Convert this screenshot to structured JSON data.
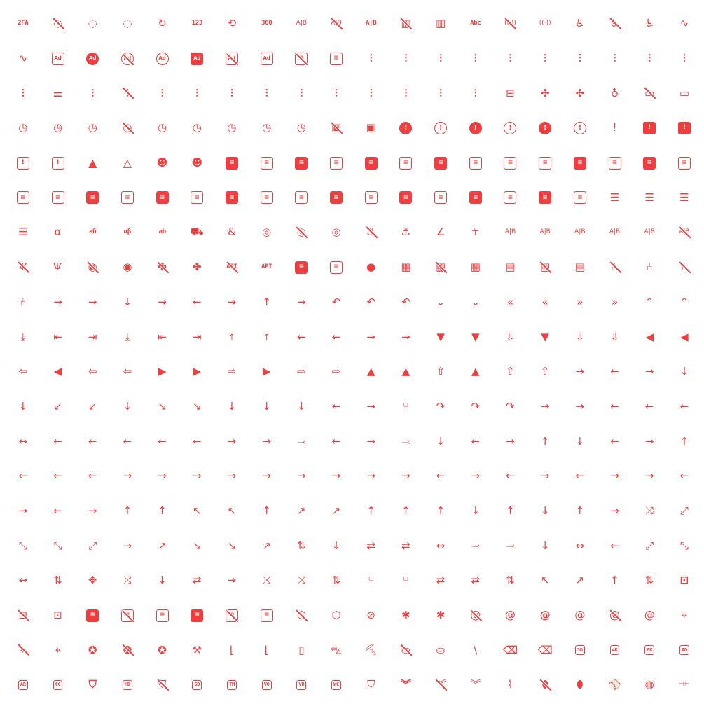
{
  "accent_color": "#f03e3e",
  "icons": [
    {
      "name": "2fa",
      "label": "2FA"
    },
    "3d-cube-sphere-off",
    "3d-cube-sphere",
    "3d-rotate",
    "24-hours",
    {
      "name": "123",
      "label": "123"
    },
    "360-view",
    {
      "name": "360",
      "label": "360"
    },
    "a-b-2",
    "a-b-off",
    {
      "name": "a-b",
      "label": "A|B"
    },
    "abacus-off",
    "abacus",
    {
      "name": "abc",
      "label": "Abc"
    },
    "access-point-off",
    "access-point",
    "accessible-filled",
    "accessible-off",
    "accessible",
    "activity-heartbeat",
    "activity",
    "ad-2",
    "ad-circle-filled",
    "ad-circle-off",
    "ad-circle",
    "ad-filled",
    "ad-off",
    "ad",
    "address-book-off",
    "address-book",
    "adjustments-alt",
    "adjustments-bolt",
    "adjustments-cancel",
    "adjustments-check",
    "adjustments-code",
    "adjustments-cog",
    "adjustments-dollar",
    "adjustments-down",
    "adjustments-exclamation",
    "adjustments-filled",
    "adjustments-heart",
    "adjustments-horizontal",
    "adjustments-minus",
    "adjustments-off",
    "adjustments-pause",
    "adjustments-pin",
    "adjustments-plus",
    "adjustments-question",
    "adjustments-search",
    "adjustments-share",
    "adjustments-star",
    "adjustments-up",
    "adjustments-x",
    "adjustments",
    "aerial-lift",
    "affiliate-filled",
    "affiliate",
    "air-balloon",
    "air-conditioning-disabled",
    "air-conditioning",
    "alarm-filled",
    "alarm-minus-filled",
    "alarm-minus",
    "alarm-off",
    "alarm-plus-filled",
    "alarm-plus",
    "alarm-snooze-filled",
    "alarm-snooze",
    "alarm",
    "album-off",
    "album",
    "alert-circle-filled",
    "alert-circle",
    "alert-hexagon-filled",
    "alert-hexagon",
    "alert-octagon-filled",
    "alert-octagon",
    "alert-small",
    "alert-square-filled",
    "alert-square-rounded-filled",
    "alert-square-rounded",
    "alert-square",
    "alert-triangle-filled",
    "alert-triangle",
    "alien-filled",
    "alien",
    "align-box-bottom-center-filled",
    "align-box-bottom-center",
    "align-box-bottom-left-filled",
    "align-box-bottom-left",
    "align-box-bottom-right-filled",
    "align-box-bottom-right",
    "align-box-center-middle-filled",
    "align-box-center-middle",
    "align-box-center-stretch",
    "align-box-center-top",
    "align-box-left-bottom-filled",
    "align-box-left-bottom",
    "align-box-left-middle-filled",
    "align-box-left-middle",
    "align-box-left-stretch",
    "align-box-left-top",
    "align-box-left-top-filled",
    "align-box-left-top-outline",
    "align-box-right-bottom-filled",
    "align-box-right-bottom",
    "align-box-right-middle-filled",
    "align-box-right-middle",
    "align-box-right-stretch",
    "align-box-right-top-filled",
    "align-box-right-top",
    "align-box-top-center-filled",
    "align-box-top-center",
    "align-box-top-left-filled",
    "align-box-top-left",
    "align-box-top-right-filled",
    "align-box-top-right",
    "align-center",
    "align-justified",
    "align-left",
    "align-right",
    "alpha",
    {
      "name": "alphabet-cyrillic",
      "label": "аб"
    },
    {
      "name": "alphabet-greek",
      "label": "αβ"
    },
    {
      "name": "alphabet-latin",
      "label": "ab"
    },
    "ambulance",
    "ampersand",
    "analyze-filled",
    "analyze-off",
    "analyze",
    "anchor-off",
    "anchor",
    "angle",
    "ankh",
    "antenna-bars-1",
    "antenna-bars-2",
    "antenna-bars-3",
    "antenna-bars-4",
    "antenna-bars-5",
    "antenna-bars-off",
    "antenna-off",
    "antenna",
    "aperture-off",
    "aperture",
    "api-app-off",
    "api-app",
    {
      "name": "api-off",
      "label": "API"
    },
    {
      "name": "api",
      "label": "API"
    },
    "app-window-filled",
    "app-window",
    "apple",
    "apps-filled",
    "apps-off",
    "apps",
    "archive-filled",
    "archive-off",
    "archive",
    "armchair-2-off",
    "armchair-2",
    "armchair-off",
    "armchair",
    "arrow-autofit-content-filled",
    "arrow-autofit-content",
    "arrow-autofit-down",
    "arrow-autofit-height",
    "arrow-autofit-left",
    "arrow-autofit-right",
    "arrow-autofit-up",
    "arrow-autofit-width",
    "arrow-back-up-double",
    "arrow-back-up",
    "arrow-back",
    "arrow-badge-down-filled",
    "arrow-badge-down",
    "arrow-badge-left-filled",
    "arrow-badge-left",
    "arrow-badge-right-filled",
    "arrow-badge-right",
    "arrow-badge-up-filled",
    "arrow-badge-up",
    "arrow-bar-down",
    "arrow-bar-left",
    "arrow-bar-right",
    "arrow-bar-to-down",
    "arrow-bar-to-left",
    "arrow-bar-to-right",
    "arrow-bar-to-up",
    "arrow-bar-up",
    "arrow-bear-left-2",
    "arrow-bear-left",
    "arrow-bear-right-2",
    "arrow-bear-right",
    "arrow-big-down-filled",
    "arrow-big-down-line-filled",
    "arrow-big-down-line",
    "arrow-big-down-lines-filled",
    "arrow-big-down-lines",
    "arrow-big-down",
    "arrow-big-left-filled",
    "arrow-big-left-line-filled",
    "arrow-big-left-line",
    "arrow-big-left-lines-filled",
    "arrow-big-left-lines",
    "arrow-big-left",
    "arrow-big-right-filled",
    "arrow-big-right-line-filled",
    "arrow-big-right-line",
    "arrow-big-right-lines-filled",
    "arrow-big-right-lines",
    "arrow-big-right",
    "arrow-big-up-filled",
    "arrow-big-up-line-filled",
    "arrow-big-up-line",
    "arrow-big-up-lines-filled",
    "arrow-big-up-lines",
    "arrow-big-up",
    "arrow-bounce",
    "arrow-curve-left",
    "arrow-curve-right",
    "arrow-down-bar",
    "arrow-down-circle",
    "arrow-down-left-circle",
    "arrow-down-left",
    "arrow-down-rhombus",
    "arrow-down-right-circle",
    "arrow-down-right",
    "arrow-down-square",
    "arrow-down-tail",
    "arrow-down",
    "arrow-elbow-left",
    "arrow-elbow-right",
    "arrow-fork",
    "arrow-forward-up-double",
    "arrow-forward-up",
    "arrow-forward",
    "arrow-guide",
    "arrow-iteration",
    "arrow-left-bar",
    "arrow-left-circle",
    "arrow-left-rhombus",
    "arrow-left-right",
    "arrow-left-square",
    "arrow-left-tail",
    "arrow-left",
    "arrow-loop-left-2",
    "arrow-loop-left",
    "arrow-loop-right-2",
    "arrow-loop-right",
    "arrow-merge-both",
    "arrow-merge-left",
    "arrow-merge-right",
    "arrow-merge",
    "arrow-move-down",
    "arrow-move-left",
    "arrow-move-right",
    "arrow-move-up",
    "arrow-narrow-down",
    "arrow-narrow-left",
    "arrow-narrow-right",
    "arrow-narrow-up",
    "arrow-ramp-left-2",
    "arrow-ramp-left-3",
    "arrow-ramp-left",
    "arrow-ramp-right-2",
    "arrow-ramp-right-3",
    "arrow-ramp-right",
    "arrow-right-bar",
    "arrow-right-circle",
    "arrow-right-rhombus",
    "arrow-right-square",
    "arrow-right-tail",
    "arrow-right",
    "arrow-rotary-first-left",
    "arrow-rotary-first-right",
    "arrow-rotary-last-left",
    "arrow-rotary-last-right",
    "arrow-rotary-left",
    "arrow-rotary-right",
    "arrow-rotary-straight",
    "arrow-roundabout-left",
    "arrow-roundabout-right",
    "arrow-sharp-turn-left",
    "arrow-sharp-turn-right",
    "arrow-up-bar",
    "arrow-up-circle",
    "arrow-up-left-circle",
    "arrow-up-left",
    "arrow-up-rhombus",
    "arrow-up-right-circle",
    "arrow-up-right",
    "arrow-up-square",
    "arrow-up-tail",
    "arrow-up",
    "arrow-wave-left-down",
    "arrow-wave-left-up",
    "arrow-wave-right-down",
    "arrow-wave-right-up",
    "arrow-zig-zag",
    "arrows-cross",
    "arrows-diagonal-2",
    "arrows-diagonal-minimize-2",
    "arrows-diagonal-minimize",
    "arrows-diagonal",
    "arrows-diff",
    "arrows-double-ne-sw",
    "arrows-double-nw-se",
    "arrows-double-se-nw",
    "arrows-double-sw-ne",
    "arrows-down-up",
    "arrows-down",
    "arrows-exchange-2",
    "arrows-exchange",
    "arrows-horizontal",
    "arrows-join-2",
    "arrows-join",
    "arrows-left-down",
    "arrows-left-right",
    "arrows-left",
    "arrows-maximize",
    "arrows-minimize",
    "arrows-move-horizontal",
    "arrows-move-vertical",
    "arrows-move",
    "arrows-random",
    "arrows-right-down",
    "arrows-right-left",
    "arrows-right",
    "arrows-shuffle-2",
    "arrows-shuffle",
    "arrows-sort",
    "arrows-split-2",
    "arrows-split",
    "arrows-transfer-down",
    "arrows-transfer-up",
    "arrows-up-down",
    "arrows-up-left",
    "arrows-up-right",
    "arrows-up",
    "arrows-vertical",
    "artboard-filled",
    "artboard-off",
    "artboard",
    "article-filled",
    "article-off",
    "article",
    "aspect-ratio-filled",
    "aspect-ratio-off",
    "aspect-ratio",
    "assembly-off",
    "assembly",
    "asset",
    "asterisk-simple",
    "asterisk",
    "at-off",
    "at",
    "atom-2-filled",
    "atom-2",
    "atom-off",
    "atom",
    "augmented-reality-2",
    "augmented-reality-off",
    "augmented-reality",
    "award-filled",
    "award-off",
    "award",
    "axe",
    "axis-x",
    "axis-y",
    "baby-bottle",
    "baby-carriage",
    "backhoe",
    "backpack-off",
    "backpack",
    "backslash",
    "backspace-filled",
    "backspace",
    {
      "name": "badge-3d",
      "label": "3D"
    },
    {
      "name": "badge-4k",
      "label": "4K"
    },
    {
      "name": "badge-8k",
      "label": "8K"
    },
    {
      "name": "badge-ad",
      "label": "AD"
    },
    {
      "name": "badge-ar",
      "label": "AR"
    },
    {
      "name": "badge-cc",
      "label": "CC"
    },
    "badge-filled",
    {
      "name": "badge-hd",
      "label": "HD"
    },
    "badge-off",
    {
      "name": "badge-sd",
      "label": "SD"
    },
    {
      "name": "badge-tm",
      "label": "TM"
    },
    {
      "name": "badge-vo",
      "label": "VO"
    },
    {
      "name": "badge-vr",
      "label": "VR"
    },
    {
      "name": "badge-wc",
      "label": "WC"
    },
    "badge",
    "badges-filled",
    "badges-off",
    "badges",
    "bandage",
    "ball-american-football-off",
    "ball-american-football",
    "ball-baseball",
    "ball-basketball",
    "barbell"
  ]
}
